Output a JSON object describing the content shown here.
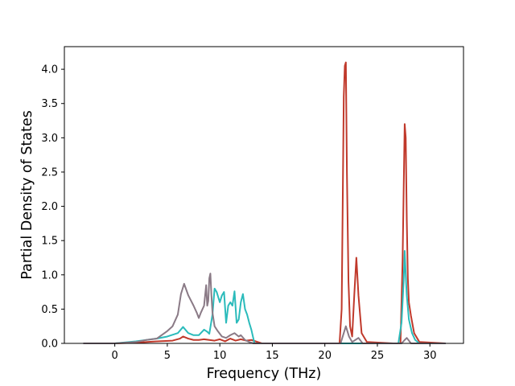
{
  "chart_data": {
    "type": "line",
    "title": "",
    "xlabel": "Frequency (THz)",
    "ylabel": "Partial Density of States",
    "xlim": [
      -4.8,
      33.2
    ],
    "ylim": [
      0,
      4.33
    ],
    "xticks": [
      0,
      5,
      10,
      15,
      20,
      25,
      30
    ],
    "xtick_labels": [
      "0",
      "5",
      "10",
      "15",
      "20",
      "25",
      "30"
    ],
    "yticks": [
      0.0,
      0.5,
      1.0,
      1.5,
      2.0,
      2.5,
      3.0,
      3.5,
      4.0
    ],
    "ytick_labels": [
      "0.0",
      "0.5",
      "1.0",
      "1.5",
      "2.0",
      "2.5",
      "3.0",
      "3.5",
      "4.0"
    ],
    "grid": false,
    "legend": "none",
    "series": [
      {
        "color": "#c0392b",
        "x": [
          -3.0,
          0.0,
          2.0,
          4.0,
          5.5,
          6.2,
          6.5,
          7.0,
          7.5,
          8.0,
          8.5,
          9.0,
          9.5,
          10.0,
          10.5,
          11.0,
          11.5,
          12.0,
          12.5,
          13.0,
          14.0,
          20.0,
          21.4,
          21.6,
          21.8,
          21.9,
          22.0,
          22.1,
          22.25,
          22.4,
          22.6,
          22.8,
          23.0,
          23.2,
          23.5,
          24.0,
          26.5,
          27.2,
          27.4,
          27.6,
          27.7,
          27.8,
          27.9,
          28.0,
          28.2,
          28.5,
          29.0,
          31.5
        ],
        "y": [
          0.0,
          0.0,
          0.01,
          0.03,
          0.04,
          0.07,
          0.1,
          0.07,
          0.05,
          0.05,
          0.06,
          0.05,
          0.04,
          0.06,
          0.03,
          0.07,
          0.04,
          0.06,
          0.04,
          0.05,
          0.0,
          0.0,
          0.0,
          0.5,
          3.6,
          4.05,
          4.1,
          2.5,
          0.9,
          0.25,
          0.1,
          0.7,
          1.25,
          0.7,
          0.15,
          0.02,
          0.0,
          0.0,
          1.2,
          3.2,
          3.0,
          1.8,
          0.95,
          0.6,
          0.4,
          0.15,
          0.02,
          0.0
        ]
      },
      {
        "color": "#2bbbbb",
        "x": [
          -3.0,
          0.0,
          2.0,
          4.0,
          5.0,
          6.0,
          6.5,
          7.0,
          7.5,
          8.0,
          8.5,
          8.8,
          9.0,
          9.3,
          9.5,
          9.7,
          10.0,
          10.2,
          10.4,
          10.6,
          10.8,
          11.0,
          11.2,
          11.4,
          11.6,
          11.8,
          12.0,
          12.2,
          12.4,
          12.6,
          12.8,
          13.0,
          13.3,
          14.0,
          27.0,
          27.3,
          27.5,
          27.6,
          27.7,
          27.8,
          28.0,
          28.3,
          28.6,
          29.0,
          31.5
        ],
        "y": [
          0.0,
          0.0,
          0.03,
          0.07,
          0.1,
          0.15,
          0.24,
          0.15,
          0.12,
          0.12,
          0.2,
          0.17,
          0.14,
          0.42,
          0.8,
          0.75,
          0.6,
          0.7,
          0.75,
          0.3,
          0.55,
          0.6,
          0.55,
          0.76,
          0.3,
          0.35,
          0.6,
          0.72,
          0.5,
          0.42,
          0.3,
          0.2,
          0.0,
          0.0,
          0.0,
          0.3,
          0.9,
          1.35,
          1.0,
          0.7,
          0.35,
          0.15,
          0.05,
          0.0,
          0.0
        ]
      },
      {
        "color": "#8a7a86",
        "x": [
          -3.0,
          0.0,
          2.0,
          3.0,
          4.0,
          5.0,
          5.5,
          6.0,
          6.3,
          6.6,
          7.0,
          7.5,
          7.8,
          8.0,
          8.2,
          8.5,
          8.7,
          8.8,
          8.9,
          9.0,
          9.1,
          9.2,
          9.3,
          9.5,
          9.8,
          10.2,
          10.6,
          11.0,
          11.4,
          11.8,
          12.0,
          12.4,
          12.8,
          13.2,
          14.0,
          21.5,
          21.8,
          22.0,
          22.3,
          22.6,
          22.9,
          23.2,
          23.6,
          27.3,
          27.6,
          27.8,
          28.2,
          31.5
        ],
        "y": [
          0.0,
          0.0,
          0.02,
          0.05,
          0.07,
          0.18,
          0.25,
          0.42,
          0.72,
          0.87,
          0.7,
          0.55,
          0.45,
          0.37,
          0.45,
          0.55,
          0.85,
          0.55,
          0.62,
          0.95,
          1.02,
          0.7,
          0.45,
          0.25,
          0.18,
          0.1,
          0.08,
          0.12,
          0.15,
          0.1,
          0.12,
          0.05,
          0.02,
          0.0,
          0.0,
          0.0,
          0.15,
          0.25,
          0.1,
          0.02,
          0.05,
          0.08,
          0.0,
          0.0,
          0.05,
          0.08,
          0.0,
          0.0
        ]
      }
    ]
  }
}
